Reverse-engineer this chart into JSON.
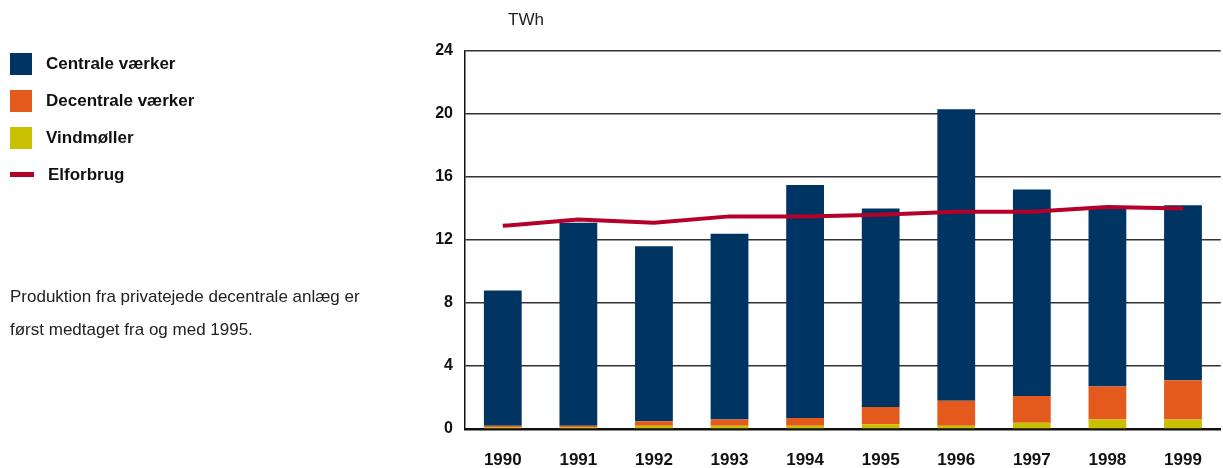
{
  "chart_data": {
    "type": "bar",
    "stacked": true,
    "ylabel": "TWh",
    "categories": [
      "1990",
      "1991",
      "1992",
      "1993",
      "1994",
      "1995",
      "1996",
      "1997",
      "1998",
      "1999"
    ],
    "series": [
      {
        "name": "Vindmøller",
        "color": "#c8c000",
        "values": [
          0.1,
          0.1,
          0.2,
          0.2,
          0.2,
          0.3,
          0.2,
          0.4,
          0.6,
          0.6
        ]
      },
      {
        "name": "Decentrale værker",
        "color": "#e35a1c",
        "values": [
          0.1,
          0.1,
          0.3,
          0.4,
          0.5,
          1.1,
          1.6,
          1.7,
          2.1,
          2.5
        ]
      },
      {
        "name": "Centrale værker",
        "color": "#003462",
        "values": [
          8.6,
          12.9,
          11.1,
          11.8,
          14.8,
          12.6,
          18.5,
          13.1,
          11.3,
          11.1
        ]
      },
      {
        "name": "Elforbrug",
        "type": "line",
        "color": "#b5002a",
        "values": [
          12.9,
          13.3,
          13.1,
          13.5,
          13.5,
          13.6,
          13.8,
          13.8,
          14.1,
          14.0
        ]
      }
    ],
    "ylim": [
      0,
      24
    ],
    "yticks": [
      0,
      4,
      8,
      12,
      16,
      20,
      24
    ],
    "grid": "y",
    "legend": "left",
    "annotations": [
      "Produktion fra privatejede decentrale anlæg er først medtaget fra og med 1995."
    ]
  }
}
